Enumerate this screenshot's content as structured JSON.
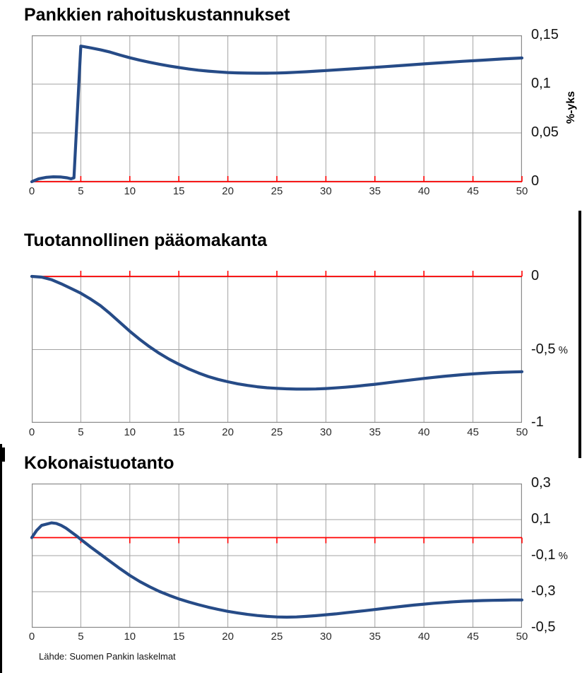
{
  "source_note": "Lähde: Suomen Pankin laskelmat",
  "colors": {
    "series_line": "#264b87",
    "zero_line": "#ff0000",
    "gridline": "#a3a3a3",
    "frame": "#8a8a8a",
    "text": "#000000",
    "background": "#ffffff"
  },
  "chart_data": [
    {
      "type": "line",
      "title": "Pankkien rahoituskustannukset",
      "unit_label": "%-yks",
      "x_range": [
        0,
        50
      ],
      "y_range": [
        0,
        0.15
      ],
      "y_gridlines": [
        0.05,
        0.1
      ],
      "zero_line": 0,
      "zero_tick_dir": "up",
      "grid": true,
      "legend": "none",
      "x_ticks": [
        {
          "v": 0,
          "label": "0"
        },
        {
          "v": 5,
          "label": "5"
        },
        {
          "v": 10,
          "label": "10"
        },
        {
          "v": 15,
          "label": "15"
        },
        {
          "v": 20,
          "label": "20"
        },
        {
          "v": 25,
          "label": "25"
        },
        {
          "v": 30,
          "label": "30"
        },
        {
          "v": 35,
          "label": "35"
        },
        {
          "v": 40,
          "label": "40"
        },
        {
          "v": 45,
          "label": "45"
        },
        {
          "v": 50,
          "label": "50"
        }
      ],
      "y_labels": [
        {
          "v": 0.15,
          "label": "0,15"
        },
        {
          "v": 0.1,
          "label": "0,1"
        },
        {
          "v": 0.05,
          "label": "0,05"
        },
        {
          "v": 0,
          "label": "0"
        }
      ],
      "series": [
        {
          "name": "bank-funding-costs",
          "points": [
            [
              0,
              0
            ],
            [
              0.7,
              0.003
            ],
            [
              1.5,
              0.0045
            ],
            [
              2.2,
              0.005
            ],
            [
              3,
              0.0048
            ],
            [
              3.6,
              0.004
            ],
            [
              4,
              0.003
            ],
            [
              4.3,
              0.004
            ],
            [
              5,
              0.139
            ],
            [
              6,
              0.1372
            ],
            [
              7,
              0.1352
            ],
            [
              8,
              0.1328
            ],
            [
              9,
              0.1298
            ],
            [
              10,
              0.127
            ],
            [
              11,
              0.1246
            ],
            [
              12,
              0.1224
            ],
            [
              13,
              0.1204
            ],
            [
              14,
              0.1186
            ],
            [
              15,
              0.117
            ],
            [
              16,
              0.1155
            ],
            [
              17,
              0.1143
            ],
            [
              18,
              0.1133
            ],
            [
              19,
              0.1125
            ],
            [
              20,
              0.1119
            ],
            [
              21,
              0.1115
            ],
            [
              22,
              0.1113
            ],
            [
              23,
              0.1112
            ],
            [
              24,
              0.1112
            ],
            [
              25,
              0.1114
            ],
            [
              26,
              0.1117
            ],
            [
              27,
              0.1122
            ],
            [
              28,
              0.1127
            ],
            [
              29,
              0.1133
            ],
            [
              30,
              0.1139
            ],
            [
              32,
              0.1152
            ],
            [
              34,
              0.1165
            ],
            [
              36,
              0.1179
            ],
            [
              38,
              0.1193
            ],
            [
              40,
              0.1207
            ],
            [
              42,
              0.1221
            ],
            [
              44,
              0.1234
            ],
            [
              46,
              0.1246
            ],
            [
              48,
              0.1258
            ],
            [
              50,
              0.1268
            ]
          ]
        }
      ]
    },
    {
      "type": "line",
      "title": "Tuotannollinen pääomakanta",
      "unit_label": "",
      "x_range": [
        0,
        50
      ],
      "y_range": [
        -1,
        0
      ],
      "y_gridlines": [
        -0.5
      ],
      "zero_line": 0,
      "zero_tick_dir": "up",
      "grid": true,
      "legend": "none",
      "x_ticks": [
        {
          "v": 0,
          "label": "0"
        },
        {
          "v": 5,
          "label": "5"
        },
        {
          "v": 10,
          "label": "10"
        },
        {
          "v": 15,
          "label": "15"
        },
        {
          "v": 20,
          "label": "20"
        },
        {
          "v": 25,
          "label": "25"
        },
        {
          "v": 30,
          "label": "30"
        },
        {
          "v": 35,
          "label": "35"
        },
        {
          "v": 40,
          "label": "40"
        },
        {
          "v": 45,
          "label": "45"
        },
        {
          "v": 50,
          "label": "50"
        }
      ],
      "y_labels": [
        {
          "v": 0,
          "label": "0"
        },
        {
          "v": -0.5,
          "label": "-0,5",
          "suffix": " %"
        },
        {
          "v": -1,
          "label": "-1"
        }
      ],
      "series": [
        {
          "name": "productive-capital-stock",
          "points": [
            [
              0,
              0
            ],
            [
              1,
              -0.005
            ],
            [
              2,
              -0.022
            ],
            [
              3,
              -0.05
            ],
            [
              4,
              -0.082
            ],
            [
              5,
              -0.115
            ],
            [
              6,
              -0.155
            ],
            [
              7,
              -0.2
            ],
            [
              8,
              -0.255
            ],
            [
              9,
              -0.315
            ],
            [
              10,
              -0.375
            ],
            [
              11,
              -0.43
            ],
            [
              12,
              -0.48
            ],
            [
              13,
              -0.525
            ],
            [
              14,
              -0.565
            ],
            [
              15,
              -0.6
            ],
            [
              16,
              -0.632
            ],
            [
              17,
              -0.66
            ],
            [
              18,
              -0.684
            ],
            [
              19,
              -0.704
            ],
            [
              20,
              -0.72
            ],
            [
              21,
              -0.734
            ],
            [
              22,
              -0.745
            ],
            [
              23,
              -0.754
            ],
            [
              24,
              -0.761
            ],
            [
              25,
              -0.765
            ],
            [
              26,
              -0.768
            ],
            [
              27,
              -0.77
            ],
            [
              28,
              -0.77
            ],
            [
              29,
              -0.769
            ],
            [
              30,
              -0.766
            ],
            [
              31,
              -0.762
            ],
            [
              32,
              -0.757
            ],
            [
              33,
              -0.751
            ],
            [
              34,
              -0.744
            ],
            [
              35,
              -0.737
            ],
            [
              36,
              -0.729
            ],
            [
              37,
              -0.721
            ],
            [
              38,
              -0.713
            ],
            [
              39,
              -0.705
            ],
            [
              40,
              -0.697
            ],
            [
              41,
              -0.69
            ],
            [
              42,
              -0.683
            ],
            [
              43,
              -0.677
            ],
            [
              44,
              -0.671
            ],
            [
              45,
              -0.666
            ],
            [
              46,
              -0.662
            ],
            [
              47,
              -0.658
            ],
            [
              48,
              -0.655
            ],
            [
              49,
              -0.653
            ],
            [
              50,
              -0.651
            ]
          ]
        }
      ]
    },
    {
      "type": "line",
      "title": "Kokonaistuotanto",
      "unit_label": "",
      "x_range": [
        0,
        50
      ],
      "y_range": [
        -0.5,
        0.3
      ],
      "y_gridlines": [
        0.1,
        -0.1,
        -0.3
      ],
      "zero_line": 0,
      "zero_tick_dir": "down",
      "grid": true,
      "legend": "none",
      "x_ticks": [
        {
          "v": 0,
          "label": "0"
        },
        {
          "v": 5,
          "label": "5"
        },
        {
          "v": 10,
          "label": "10"
        },
        {
          "v": 15,
          "label": "15"
        },
        {
          "v": 20,
          "label": "20"
        },
        {
          "v": 25,
          "label": "25"
        },
        {
          "v": 30,
          "label": "30"
        },
        {
          "v": 35,
          "label": "35"
        },
        {
          "v": 40,
          "label": "40"
        },
        {
          "v": 45,
          "label": "45"
        },
        {
          "v": 50,
          "label": "50"
        }
      ],
      "y_labels": [
        {
          "v": 0.3,
          "label": "0,3"
        },
        {
          "v": 0.1,
          "label": "0,1"
        },
        {
          "v": -0.1,
          "label": "-0,1",
          "suffix": " %"
        },
        {
          "v": -0.3,
          "label": "-0,3"
        },
        {
          "v": -0.5,
          "label": "-0,5"
        }
      ],
      "series": [
        {
          "name": "total-output",
          "points": [
            [
              0,
              0
            ],
            [
              0.5,
              0.04
            ],
            [
              1,
              0.068
            ],
            [
              2,
              0.082
            ],
            [
              2.5,
              0.079
            ],
            [
              3,
              0.068
            ],
            [
              3.5,
              0.052
            ],
            [
              4,
              0.032
            ],
            [
              4.5,
              0.012
            ],
            [
              5,
              -0.01
            ],
            [
              6,
              -0.052
            ],
            [
              7,
              -0.092
            ],
            [
              8,
              -0.132
            ],
            [
              9,
              -0.172
            ],
            [
              10,
              -0.21
            ],
            [
              11,
              -0.243
            ],
            [
              12,
              -0.272
            ],
            [
              13,
              -0.298
            ],
            [
              14,
              -0.32
            ],
            [
              15,
              -0.34
            ],
            [
              16,
              -0.357
            ],
            [
              17,
              -0.372
            ],
            [
              18,
              -0.386
            ],
            [
              19,
              -0.398
            ],
            [
              20,
              -0.409
            ],
            [
              21,
              -0.418
            ],
            [
              22,
              -0.426
            ],
            [
              23,
              -0.432
            ],
            [
              24,
              -0.437
            ],
            [
              25,
              -0.44
            ],
            [
              26,
              -0.441
            ],
            [
              27,
              -0.44
            ],
            [
              28,
              -0.437
            ],
            [
              29,
              -0.433
            ],
            [
              30,
              -0.428
            ],
            [
              31,
              -0.423
            ],
            [
              32,
              -0.417
            ],
            [
              33,
              -0.411
            ],
            [
              34,
              -0.405
            ],
            [
              35,
              -0.399
            ],
            [
              36,
              -0.392
            ],
            [
              37,
              -0.386
            ],
            [
              38,
              -0.38
            ],
            [
              39,
              -0.374
            ],
            [
              40,
              -0.369
            ],
            [
              41,
              -0.364
            ],
            [
              42,
              -0.36
            ],
            [
              43,
              -0.356
            ],
            [
              44,
              -0.353
            ],
            [
              45,
              -0.351
            ],
            [
              46,
              -0.349
            ],
            [
              47,
              -0.348
            ],
            [
              48,
              -0.347
            ],
            [
              49,
              -0.346
            ],
            [
              50,
              -0.346
            ]
          ]
        }
      ]
    }
  ]
}
